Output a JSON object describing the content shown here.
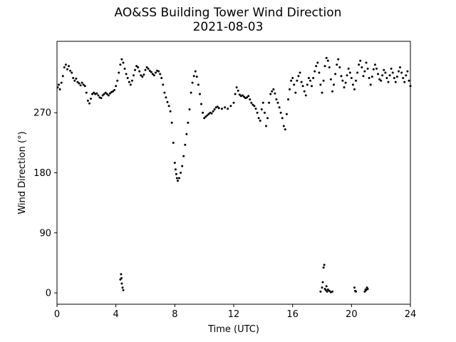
{
  "chart_data": {
    "type": "scatter",
    "title": "AO&SS Building Tower Wind Direction",
    "subtitle": "2021-08-03",
    "xlabel": "Time (UTC)",
    "ylabel": "Wind Direction (°)",
    "xlim": [
      0,
      24
    ],
    "ylim": [
      -17,
      377
    ],
    "xticks": [
      0,
      4,
      8,
      12,
      16,
      20,
      24
    ],
    "yticks": [
      0,
      90,
      180,
      270
    ],
    "grid": false,
    "marker_color": "#000000",
    "series": [
      {
        "points": [
          [
            0.05,
            308
          ],
          [
            0.12,
            312
          ],
          [
            0.2,
            305
          ],
          [
            0.3,
            315
          ],
          [
            0.4,
            325
          ],
          [
            0.5,
            338
          ],
          [
            0.6,
            342
          ],
          [
            0.7,
            335
          ],
          [
            0.8,
            340
          ],
          [
            0.9,
            333
          ],
          [
            1.0,
            330
          ],
          [
            1.1,
            322
          ],
          [
            1.2,
            318
          ],
          [
            1.3,
            321
          ],
          [
            1.4,
            316
          ],
          [
            1.5,
            314
          ],
          [
            1.6,
            311
          ],
          [
            1.7,
            315
          ],
          [
            1.8,
            312
          ],
          [
            1.9,
            310
          ],
          [
            2.0,
            300
          ],
          [
            2.1,
            288
          ],
          [
            2.2,
            284
          ],
          [
            2.3,
            291
          ],
          [
            2.4,
            298
          ],
          [
            2.5,
            300
          ],
          [
            2.6,
            298
          ],
          [
            2.7,
            299
          ],
          [
            2.8,
            296
          ],
          [
            2.9,
            293
          ],
          [
            3.0,
            292
          ],
          [
            3.1,
            296
          ],
          [
            3.2,
            298
          ],
          [
            3.3,
            300
          ],
          [
            3.4,
            298
          ],
          [
            3.5,
            296
          ],
          [
            3.6,
            299
          ],
          [
            3.7,
            301
          ],
          [
            3.8,
            302
          ],
          [
            3.9,
            304
          ],
          [
            4.0,
            310
          ],
          [
            4.1,
            318
          ],
          [
            4.2,
            330
          ],
          [
            4.3,
            342
          ],
          [
            4.4,
            350
          ],
          [
            4.5,
            345
          ],
          [
            4.6,
            336
          ],
          [
            4.7,
            328
          ],
          [
            4.8,
            322
          ],
          [
            4.9,
            316
          ],
          [
            5.0,
            312
          ],
          [
            5.1,
            318
          ],
          [
            5.2,
            326
          ],
          [
            5.3,
            334
          ],
          [
            5.4,
            340
          ],
          [
            5.5,
            338
          ],
          [
            5.6,
            332
          ],
          [
            5.7,
            326
          ],
          [
            5.8,
            324
          ],
          [
            5.9,
            327
          ],
          [
            6.0,
            334
          ],
          [
            6.1,
            338
          ],
          [
            6.2,
            336
          ],
          [
            6.3,
            333
          ],
          [
            6.4,
            331
          ],
          [
            6.5,
            328
          ],
          [
            6.6,
            326
          ],
          [
            6.7,
            330
          ],
          [
            6.8,
            333
          ],
          [
            6.9,
            332
          ],
          [
            7.0,
            328
          ],
          [
            7.1,
            322
          ],
          [
            7.2,
            312
          ],
          [
            7.3,
            300
          ],
          [
            7.4,
            293
          ],
          [
            7.5,
            286
          ],
          [
            7.6,
            280
          ],
          [
            7.7,
            272
          ],
          [
            7.8,
            255
          ],
          [
            7.9,
            225
          ],
          [
            8.0,
            195
          ],
          [
            8.05,
            185
          ],
          [
            8.1,
            178
          ],
          [
            8.15,
            172
          ],
          [
            8.2,
            168
          ],
          [
            8.3,
            172
          ],
          [
            8.4,
            180
          ],
          [
            8.5,
            190
          ],
          [
            8.6,
            205
          ],
          [
            8.7,
            222
          ],
          [
            8.8,
            238
          ],
          [
            8.9,
            255
          ],
          [
            9.0,
            275
          ],
          [
            9.1,
            300
          ],
          [
            9.2,
            315
          ],
          [
            9.3,
            325
          ],
          [
            9.4,
            332
          ],
          [
            9.5,
            324
          ],
          [
            9.6,
            312
          ],
          [
            9.7,
            298
          ],
          [
            9.8,
            283
          ],
          [
            9.9,
            270
          ],
          [
            10.0,
            262
          ],
          [
            10.1,
            264
          ],
          [
            10.2,
            266
          ],
          [
            10.3,
            268
          ],
          [
            10.4,
            270
          ],
          [
            10.5,
            269
          ],
          [
            10.6,
            272
          ],
          [
            10.7,
            275
          ],
          [
            10.8,
            278
          ],
          [
            10.9,
            279
          ],
          [
            11.0,
            277
          ],
          [
            11.2,
            276
          ],
          [
            11.4,
            278
          ],
          [
            11.6,
            276
          ],
          [
            11.8,
            280
          ],
          [
            12.0,
            285
          ],
          [
            12.1,
            298
          ],
          [
            12.2,
            308
          ],
          [
            12.3,
            303
          ],
          [
            12.4,
            297
          ],
          [
            12.5,
            295
          ],
          [
            12.6,
            296
          ],
          [
            12.7,
            294
          ],
          [
            12.8,
            292
          ],
          [
            12.9,
            293
          ],
          [
            13.0,
            295
          ],
          [
            13.1,
            290
          ],
          [
            13.2,
            285
          ],
          [
            13.3,
            282
          ],
          [
            13.4,
            280
          ],
          [
            13.5,
            276
          ],
          [
            13.6,
            270
          ],
          [
            13.7,
            262
          ],
          [
            13.8,
            258
          ],
          [
            13.9,
            275
          ],
          [
            14.0,
            285
          ],
          [
            14.1,
            270
          ],
          [
            14.2,
            250
          ],
          [
            14.3,
            262
          ],
          [
            14.4,
            285
          ],
          [
            14.5,
            298
          ],
          [
            14.6,
            302
          ],
          [
            14.7,
            305
          ],
          [
            14.8,
            299
          ],
          [
            14.9,
            290
          ],
          [
            15.0,
            285
          ],
          [
            15.1,
            278
          ],
          [
            15.2,
            270
          ],
          [
            15.3,
            262
          ],
          [
            15.4,
            250
          ],
          [
            15.5,
            245
          ],
          [
            15.6,
            268
          ],
          [
            15.7,
            290
          ],
          [
            15.8,
            305
          ],
          [
            15.9,
            318
          ],
          [
            16.0,
            322
          ],
          [
            16.1,
            312
          ],
          [
            16.2,
            300
          ],
          [
            16.3,
            318
          ],
          [
            16.4,
            325
          ],
          [
            16.5,
            330
          ],
          [
            16.6,
            316
          ],
          [
            16.7,
            310
          ],
          [
            16.8,
            302
          ],
          [
            16.9,
            296
          ],
          [
            17.0,
            312
          ],
          [
            17.1,
            322
          ],
          [
            17.2,
            318
          ],
          [
            17.3,
            310
          ],
          [
            17.4,
            322
          ],
          [
            17.5,
            332
          ],
          [
            17.6,
            340
          ],
          [
            17.7,
            345
          ],
          [
            17.8,
            330
          ],
          [
            17.9,
            312
          ],
          [
            18.0,
            300
          ],
          [
            18.1,
            318
          ],
          [
            18.2,
            340
          ],
          [
            18.3,
            352
          ],
          [
            18.4,
            348
          ],
          [
            18.5,
            338
          ],
          [
            18.6,
            320
          ],
          [
            18.7,
            302
          ],
          [
            18.8,
            312
          ],
          [
            18.9,
            328
          ],
          [
            19.0,
            342
          ],
          [
            19.1,
            350
          ],
          [
            19.2,
            338
          ],
          [
            19.3,
            325
          ],
          [
            19.4,
            318
          ],
          [
            19.5,
            308
          ],
          [
            19.6,
            315
          ],
          [
            19.7,
            326
          ],
          [
            19.8,
            336
          ],
          [
            19.9,
            330
          ],
          [
            20.0,
            322
          ],
          [
            20.1,
            312
          ],
          [
            20.2,
            305
          ],
          [
            20.3,
            318
          ],
          [
            20.4,
            330
          ],
          [
            20.5,
            342
          ],
          [
            20.6,
            348
          ],
          [
            20.7,
            338
          ],
          [
            20.8,
            325
          ],
          [
            20.9,
            332
          ],
          [
            21.0,
            345
          ],
          [
            21.1,
            336
          ],
          [
            21.2,
            322
          ],
          [
            21.3,
            312
          ],
          [
            21.4,
            324
          ],
          [
            21.5,
            335
          ],
          [
            21.6,
            342
          ],
          [
            21.7,
            336
          ],
          [
            21.8,
            328
          ],
          [
            21.9,
            320
          ],
          [
            22.0,
            318
          ],
          [
            22.1,
            326
          ],
          [
            22.2,
            334
          ],
          [
            22.3,
            330
          ],
          [
            22.4,
            322
          ],
          [
            22.5,
            316
          ],
          [
            22.6,
            326
          ],
          [
            22.7,
            336
          ],
          [
            22.8,
            330
          ],
          [
            22.9,
            322
          ],
          [
            23.0,
            316
          ],
          [
            23.1,
            324
          ],
          [
            23.2,
            332
          ],
          [
            23.3,
            338
          ],
          [
            23.4,
            330
          ],
          [
            23.5,
            322
          ],
          [
            23.6,
            316
          ],
          [
            23.7,
            326
          ],
          [
            23.8,
            332
          ],
          [
            23.9,
            318
          ],
          [
            24.0,
            310
          ],
          [
            4.3,
            20
          ],
          [
            4.35,
            28
          ],
          [
            4.4,
            14
          ],
          [
            4.45,
            8
          ],
          [
            4.5,
            4
          ],
          [
            4.38,
            22
          ],
          [
            17.9,
            2
          ],
          [
            18.0,
            8
          ],
          [
            18.05,
            16
          ],
          [
            18.1,
            38
          ],
          [
            18.15,
            42
          ],
          [
            18.2,
            6
          ],
          [
            18.25,
            4
          ],
          [
            18.3,
            10
          ],
          [
            18.35,
            2
          ],
          [
            18.4,
            5
          ],
          [
            18.5,
            3
          ],
          [
            18.6,
            1
          ],
          [
            18.7,
            2
          ],
          [
            20.2,
            8
          ],
          [
            20.25,
            3
          ],
          [
            20.3,
            2
          ],
          [
            20.9,
            2
          ],
          [
            20.95,
            5
          ],
          [
            21.0,
            4
          ],
          [
            21.05,
            8
          ],
          [
            21.1,
            6
          ]
        ]
      }
    ]
  }
}
